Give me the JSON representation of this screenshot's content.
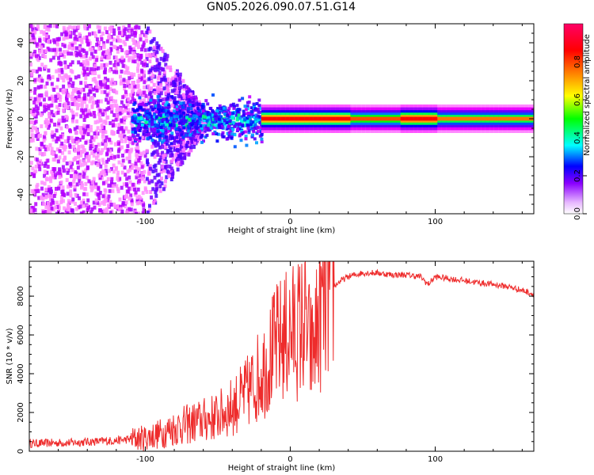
{
  "title": "GN05.2026.090.07.51.G14",
  "chart_data": [
    {
      "type": "heatmap",
      "xlabel": "Height of straight line (km)",
      "ylabel": "Frequency (Hz)",
      "xlim": [
        -180,
        168
      ],
      "ylim": [
        -50,
        50
      ],
      "xticks": [
        -100,
        0,
        100
      ],
      "yticks": [
        -40,
        -20,
        0,
        20,
        40
      ],
      "colorbar": {
        "label": "Normalized spectral amplitude",
        "range": [
          0,
          1
        ],
        "ticks": [
          0.0,
          0.2,
          0.4,
          0.6,
          0.8
        ],
        "colors": [
          "#ffffff",
          "#ff00ff",
          "#6a00ff",
          "#0000ff",
          "#00ffff",
          "#00ff00",
          "#ffff00",
          "#ff8000",
          "#ff0000",
          "#ff0000"
        ]
      },
      "ridge": {
        "x_start": -20,
        "x_end": 168,
        "frequency": 0,
        "plateau": [
          [
            -20,
            40,
            0.9
          ],
          [
            40,
            75,
            0.55
          ],
          [
            75,
            100,
            0.95
          ],
          [
            100,
            168,
            0.5
          ]
        ]
      }
    },
    {
      "type": "line",
      "xlabel": "Height of straight line (km)",
      "ylabel": "SNR (10 * v/v)",
      "xlim": [
        -180,
        168
      ],
      "ylim": [
        0,
        9800
      ],
      "xticks": [
        -100,
        0,
        100
      ],
      "yticks": [
        0,
        2000,
        4000,
        6000,
        8000
      ],
      "color": "#ee2c2c",
      "series": [
        {
          "x": [
            -180,
            -150,
            -120,
            -100,
            -90,
            -80,
            -70,
            -60,
            -50,
            -40,
            -35,
            -30,
            -25,
            -20,
            -15,
            -10,
            -5,
            0,
            5,
            10,
            15,
            20,
            25,
            30,
            35,
            40,
            50,
            60,
            70,
            80,
            90,
            95,
            100,
            110,
            120,
            130,
            140,
            150,
            160,
            168
          ],
          "y": [
            400,
            450,
            550,
            700,
            900,
            1200,
            1400,
            1600,
            1800,
            2300,
            2600,
            3000,
            3500,
            4100,
            4700,
            5400,
            5800,
            6100,
            6300,
            6600,
            5000,
            7000,
            7900,
            8500,
            8800,
            9000,
            9200,
            9200,
            9100,
            9100,
            9000,
            8600,
            9000,
            8900,
            8800,
            8700,
            8600,
            8500,
            8300,
            8100
          ]
        }
      ]
    }
  ]
}
